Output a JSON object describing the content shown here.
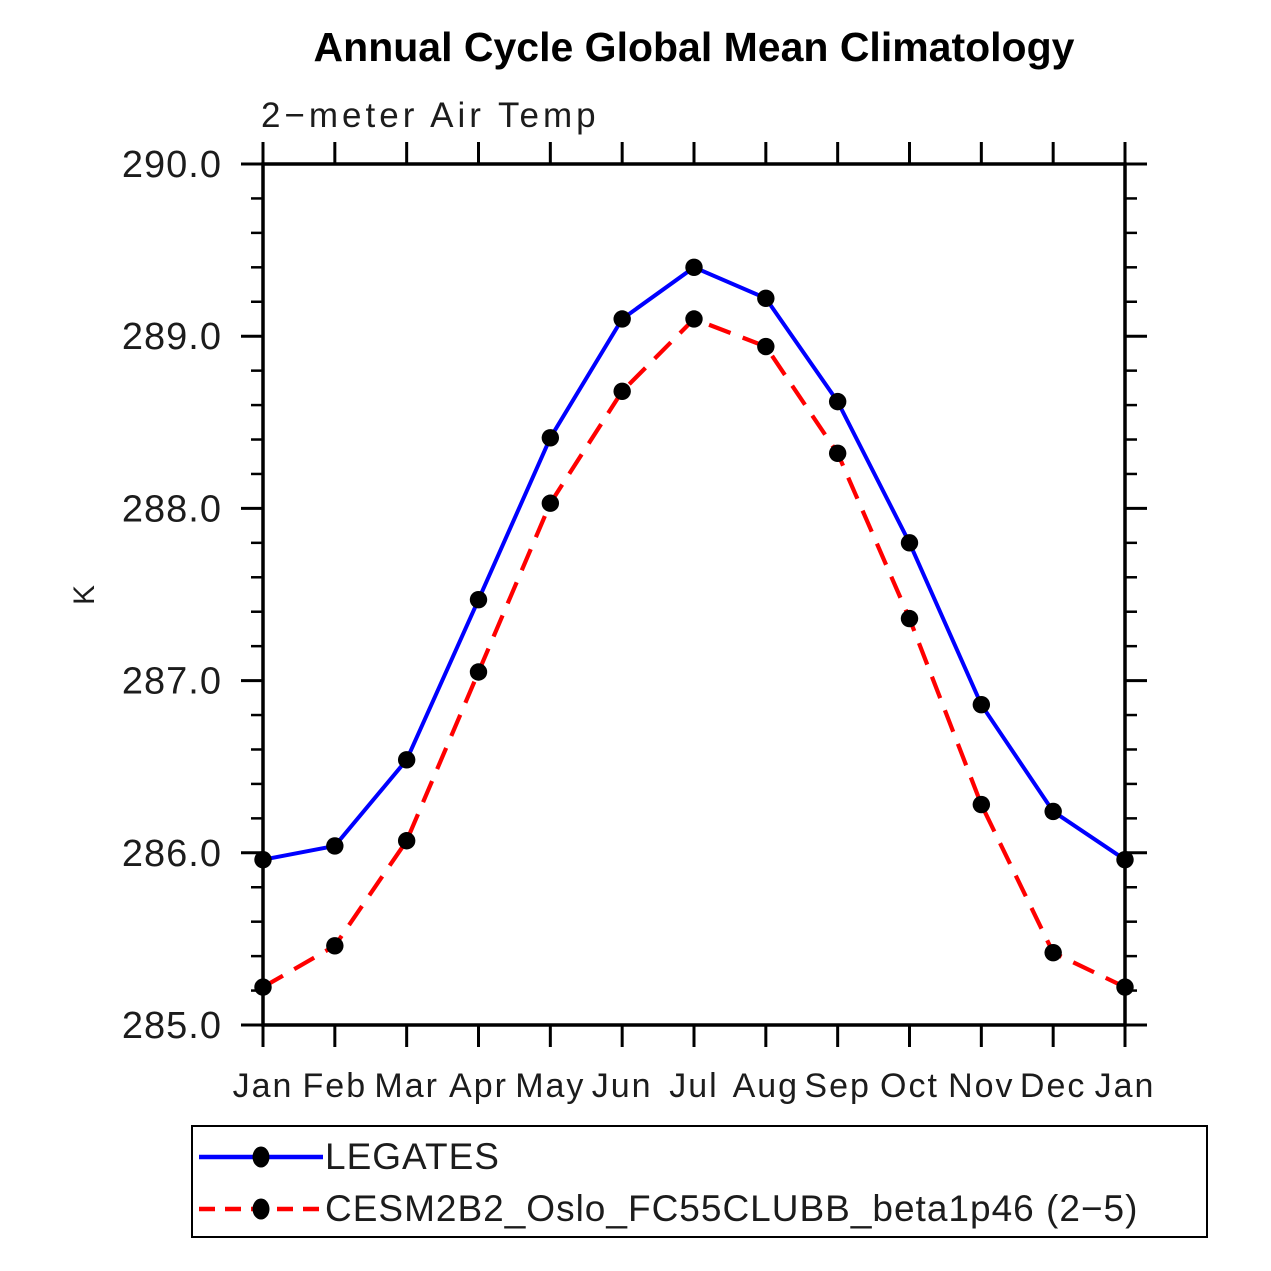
{
  "chart": {
    "title": "Annual Cycle Global Mean Climatology",
    "subtitle": "2−meter Air Temp",
    "ylabel": "K"
  },
  "legend": {
    "items": [
      {
        "label": "LEGATES",
        "line_style": "solid",
        "line_color": "#0000ff",
        "marker": "filled-circle",
        "marker_color": "#000000"
      },
      {
        "label": "CESM2B2_Oslo_FC55CLUBB_beta1p46 (2−5)",
        "line_style": "dashed",
        "line_color": "#ff0000",
        "marker": "filled-circle",
        "marker_color": "#000000"
      }
    ]
  },
  "chart_data": {
    "type": "line",
    "title": "Annual Cycle Global Mean Climatology",
    "subtitle": "2−meter Air Temp",
    "xlabel": "",
    "ylabel": "K",
    "categories": [
      "Jan",
      "Feb",
      "Mar",
      "Apr",
      "May",
      "Jun",
      "Jul",
      "Aug",
      "Sep",
      "Oct",
      "Nov",
      "Dec",
      "Jan"
    ],
    "ylim": [
      285.0,
      290.0
    ],
    "ytick_labels": [
      "285.0",
      "286.0",
      "287.0",
      "288.0",
      "289.0",
      "290.0"
    ],
    "ytick_major_interval": 1.0,
    "ytick_minor_interval": 0.2,
    "grid": false,
    "legend_position": "bottom-left-box",
    "axis_color": "#000000",
    "series": [
      {
        "name": "LEGATES",
        "color": "#0000ff",
        "line_style": "solid",
        "marker": "filled-circle",
        "marker_color": "#000000",
        "values": [
          285.96,
          286.04,
          286.54,
          287.47,
          288.41,
          289.1,
          289.4,
          289.22,
          288.62,
          287.8,
          286.86,
          286.24,
          285.96
        ]
      },
      {
        "name": "CESM2B2_Oslo_FC55CLUBB_beta1p46 (2−5)",
        "color": "#ff0000",
        "line_style": "dashed",
        "marker": "filled-circle",
        "marker_color": "#000000",
        "values": [
          285.22,
          285.46,
          286.07,
          287.05,
          288.03,
          288.68,
          289.1,
          288.94,
          288.32,
          287.36,
          286.28,
          285.42,
          285.22
        ]
      }
    ]
  }
}
